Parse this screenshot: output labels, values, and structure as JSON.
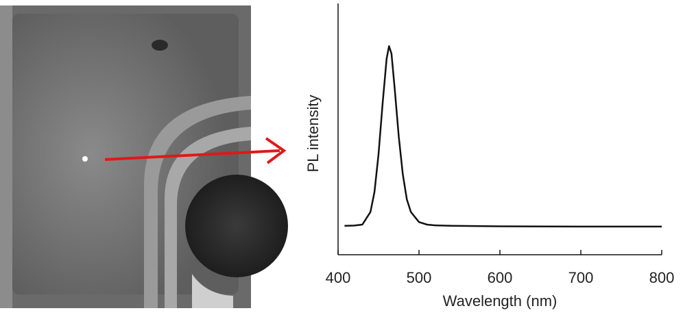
{
  "chart_data": {
    "type": "line",
    "x_label": "Wavelength (nm)",
    "y_label": "PL intensity",
    "x": [
      408,
      420,
      430,
      440,
      445,
      450,
      455,
      460,
      463,
      466,
      470,
      475,
      480,
      485,
      490,
      500,
      510,
      520,
      540,
      600,
      700,
      800
    ],
    "series": [
      {
        "color": "#111111",
        "values": [
          0.115,
          0.116,
          0.12,
          0.17,
          0.25,
          0.4,
          0.6,
          0.78,
          0.83,
          0.8,
          0.66,
          0.47,
          0.32,
          0.22,
          0.17,
          0.13,
          0.12,
          0.117,
          0.115,
          0.113,
          0.112,
          0.112
        ]
      }
    ],
    "xlim": [
      400,
      800
    ],
    "xticks": [
      400,
      500,
      600,
      700,
      800
    ],
    "ylim": [
      0,
      1
    ]
  }
}
